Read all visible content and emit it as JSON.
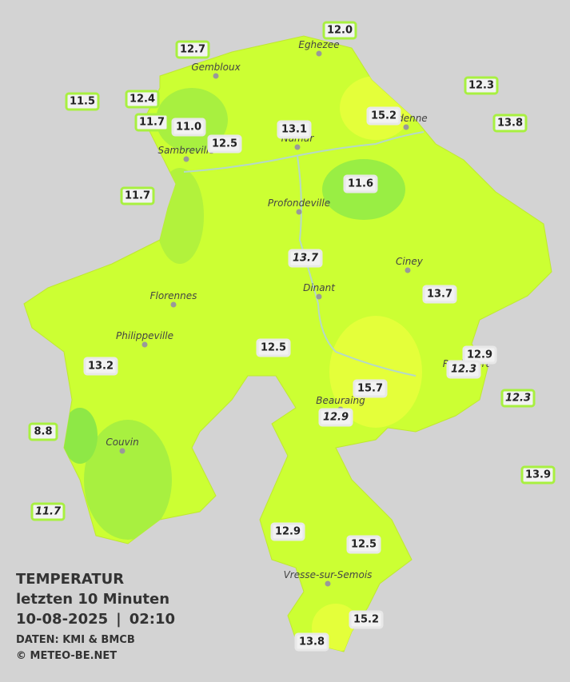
{
  "header": {
    "title": "TEMPERATUR",
    "subtitle": "letzten 10 Minuten",
    "date": "10-08-2025",
    "separator": "|",
    "time": "02:10",
    "source": "DATEN: KMI & BMCB",
    "copyright": "© METEO-BE.NET"
  },
  "cities": [
    "Eghezee",
    "Gembloux",
    "Andenne",
    "Namur",
    "Sambreville",
    "Profondeville",
    "Ciney",
    "Dinant",
    "Florennes",
    "Philippeville",
    "Rochefort",
    "Beauraing",
    "Couvin",
    "Vresse-sur-Semois"
  ],
  "stations": [
    {
      "value": "12.0",
      "outside": true
    },
    {
      "value": "12.7",
      "outside": true
    },
    {
      "value": "12.3",
      "outside": true
    },
    {
      "value": "11.5",
      "outside": true
    },
    {
      "value": "12.4",
      "outside": true
    },
    {
      "value": "15.2"
    },
    {
      "value": "13.8",
      "outside": true
    },
    {
      "value": "11.7",
      "outside": true
    },
    {
      "value": "11.0"
    },
    {
      "value": "13.1"
    },
    {
      "value": "12.5"
    },
    {
      "value": "11.6"
    },
    {
      "value": "11.7",
      "outside": true
    },
    {
      "value": "13.7",
      "italic": true
    },
    {
      "value": "13.7"
    },
    {
      "value": "12.5"
    },
    {
      "value": "12.9"
    },
    {
      "value": "13.2"
    },
    {
      "value": "12.3",
      "italic": true
    },
    {
      "value": "15.7"
    },
    {
      "value": "12.3",
      "italic": true,
      "outside": true
    },
    {
      "value": "12.9",
      "italic": true
    },
    {
      "value": "8.8",
      "outside": true
    },
    {
      "value": "13.9",
      "outside": true
    },
    {
      "value": "11.7",
      "italic": true,
      "outside": true
    },
    {
      "value": "12.9"
    },
    {
      "value": "12.5"
    },
    {
      "value": "15.2"
    },
    {
      "value": "13.8"
    }
  ]
}
